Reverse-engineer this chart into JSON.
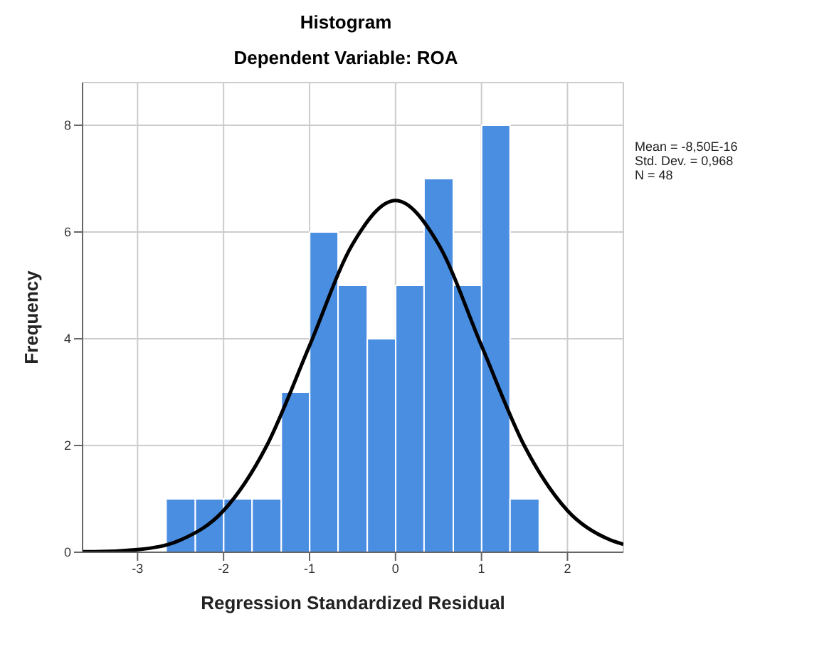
{
  "chart_data": {
    "type": "histogram",
    "title": "Histogram",
    "subtitle": "Dependent Variable: ROA",
    "xlabel": "Regression Standardized Residual",
    "ylabel": "Frequency",
    "bins": [
      -2.67,
      -2.33,
      -2.0,
      -1.67,
      -1.33,
      -1.0,
      -0.67,
      -0.33,
      0.0,
      0.33,
      0.67,
      1.0,
      1.33,
      1.67
    ],
    "values": [
      1,
      1,
      1,
      1,
      3,
      6,
      5,
      4,
      5,
      7,
      5,
      8,
      1
    ],
    "color": "#4a8ee2",
    "series": [
      {
        "type": "line",
        "color": "#000000",
        "x": [
          -3.64,
          -3.5,
          -3.0,
          -2.5,
          -2.0,
          -1.5,
          -1.0,
          -0.5,
          0.0,
          0.5,
          1.0,
          1.5,
          2.0,
          2.5,
          2.65
        ],
        "values": [
          0.01,
          0.01,
          0.05,
          0.23,
          0.78,
          1.99,
          3.87,
          5.77,
          6.59,
          5.77,
          3.87,
          1.99,
          0.78,
          0.23,
          0.15
        ]
      }
    ],
    "xlim": [
      -3.64,
      2.65
    ],
    "xticks": [
      -3,
      -2,
      -1,
      0,
      1,
      2
    ],
    "ylim": [
      0,
      8.8
    ],
    "yticks": [
      0,
      2,
      4,
      6,
      8
    ],
    "grid": true,
    "annotations": [
      "Mean = -8,50E-16",
      "Std. Dev. = 0,968",
      "N = 48"
    ]
  }
}
